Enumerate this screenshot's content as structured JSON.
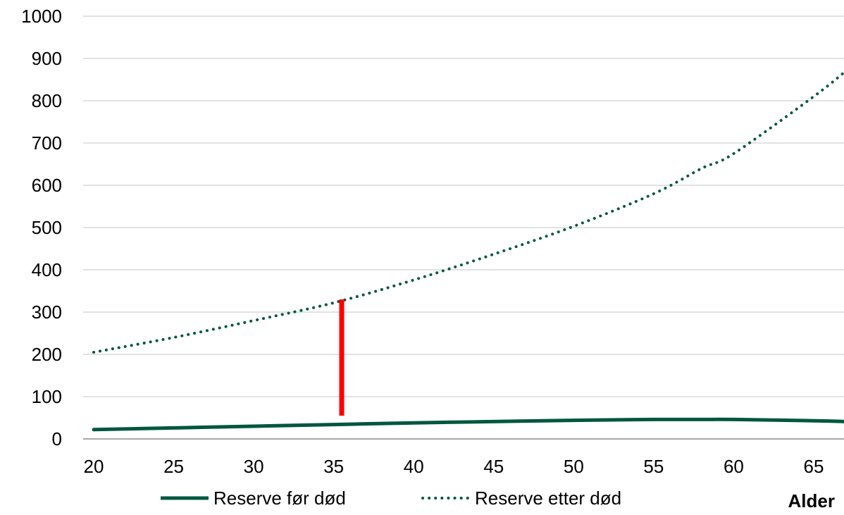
{
  "chart_data": {
    "type": "line",
    "xlabel": "Alder",
    "ylabel": "",
    "x": [
      20,
      25,
      30,
      35,
      40,
      45,
      50,
      55,
      58,
      60,
      65,
      67
    ],
    "xlim": [
      20,
      67
    ],
    "ylim": [
      0,
      1000
    ],
    "x_ticks": [
      20,
      25,
      30,
      35,
      40,
      45,
      50,
      55,
      60,
      65
    ],
    "y_ticks": [
      0,
      100,
      200,
      300,
      400,
      500,
      600,
      700,
      800,
      900,
      1000
    ],
    "x_tick_labels": [
      "20",
      "25",
      "30",
      "35",
      "40",
      "45",
      "50",
      "55",
      "60",
      "65"
    ],
    "y_tick_labels": [
      "0",
      "100",
      "200",
      "300",
      "400",
      "500",
      "600",
      "700",
      "800",
      "900",
      "1000"
    ],
    "grid": "horizontal",
    "legend_placement": "bottom",
    "series": [
      {
        "name": "Reserve før død",
        "style": "solid",
        "color": "#00573f",
        "values": [
          22,
          26,
          30,
          34,
          38,
          41,
          44,
          46,
          46,
          46,
          43,
          41
        ]
      },
      {
        "name": "Reserve etter død",
        "style": "dotted",
        "color": "#00573f",
        "values": [
          205,
          240,
          280,
          322,
          376,
          437,
          503,
          580,
          640,
          675,
          810,
          870
        ]
      }
    ],
    "annotation": {
      "type": "vertical-bar",
      "color": "#ff0000",
      "x": 35.5,
      "y_from": 55,
      "y_to": 330
    }
  }
}
